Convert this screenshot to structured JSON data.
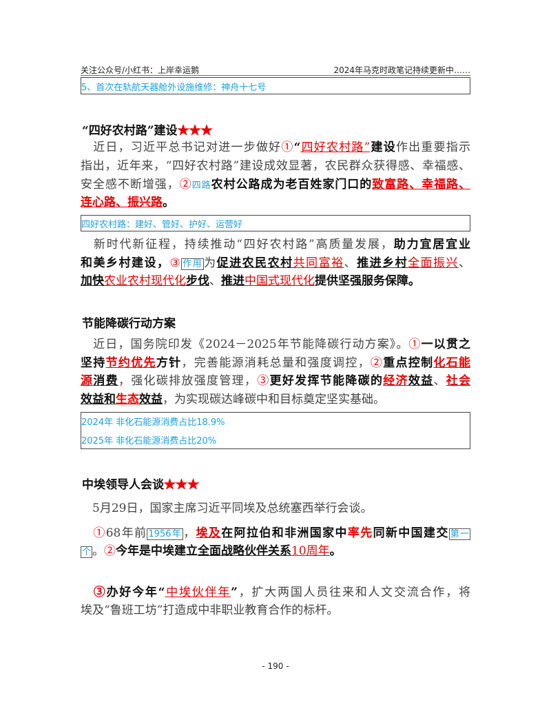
{
  "header": {
    "left": "关注公众号/小红书：上岸幸运鹅",
    "right": "2024年马克时政笔记持续更新中……"
  },
  "notes": {
    "n1": "5、首次在轨航天器舱外设施维修：神舟十七号",
    "n2": "四好农村路：建好、管好、护好、运营好",
    "n3a": "2024年 非化石能源消费占比18.9%",
    "n3b": "2025年 非化石能源消费占比20%"
  },
  "titles": {
    "t1": "“四好农村路”建设",
    "t2": "节能降碳行动方案",
    "t3": "中埃领导人会谈",
    "stars": "★★★"
  },
  "colors": {
    "red": "#ee0000",
    "note_blue": "#1ba1e2",
    "text": "#444444"
  },
  "lines": [
    {
      "full": true,
      "segs": [
        [
          "　近日，习近平总书记对进一步做好",
          "n"
        ],
        [
          "①",
          "r"
        ],
        [
          "“",
          "b"
        ],
        [
          "四好农村路”",
          "ru"
        ],
        [
          "建设",
          "b"
        ],
        [
          "作出重要指示",
          "n"
        ]
      ]
    },
    {
      "full": true,
      "segs": [
        [
          "指出，近年来，“四好农村路”建设成效显著，农民群众获得感、幸福感、",
          "n"
        ]
      ]
    },
    {
      "full": true,
      "segs": [
        [
          "安全感不断增强，",
          "n"
        ],
        [
          "②",
          "r"
        ],
        [
          "四路",
          "c"
        ],
        [
          "农村公路成为老百姓家门口的",
          "b"
        ],
        [
          "致富路、幸福路、",
          "rbu"
        ]
      ]
    },
    {
      "full": false,
      "segs": [
        [
          "连心路、振兴路",
          "rbu"
        ],
        [
          "。",
          "b"
        ]
      ]
    },
    {
      "full": true,
      "segs": [
        [
          "　新时代新征程，持续推动“四好农村路”高质量发展，",
          "n"
        ],
        [
          "助力宜居宜业",
          "b"
        ]
      ]
    },
    {
      "full": true,
      "segs": [
        [
          "和美乡村建设，",
          "b"
        ],
        [
          "③",
          "r"
        ],
        [
          "作用",
          "cb"
        ],
        [
          "为",
          "n"
        ],
        [
          "促进农民农村",
          "bu"
        ],
        [
          "共同富裕",
          "ru"
        ],
        [
          "、",
          "n"
        ],
        [
          "推进乡村",
          "bu"
        ],
        [
          "全面振兴",
          "ru"
        ],
        [
          "、",
          "n"
        ]
      ]
    },
    {
      "full": false,
      "segs": [
        [
          "加快",
          "bu"
        ],
        [
          "农业农村现代化",
          "ru"
        ],
        [
          "步伐",
          "bu"
        ],
        [
          "、",
          "n"
        ],
        [
          "推进",
          "bu"
        ],
        [
          "中国式现代化",
          "ru"
        ],
        [
          "提供坚强服务保障。",
          "b"
        ]
      ]
    },
    {
      "full": true,
      "segs": [
        [
          "　近日，国务院印发《2024－2025年节能降碳行动方案》。",
          "n"
        ],
        [
          "①",
          "r"
        ],
        [
          "一以贯之",
          "b"
        ]
      ]
    },
    {
      "full": true,
      "segs": [
        [
          "坚持",
          "b"
        ],
        [
          "节约优先",
          "rbu"
        ],
        [
          "方针",
          "b"
        ],
        [
          "，完善能源消耗总量和强度调控，",
          "n"
        ],
        [
          "②",
          "r"
        ],
        [
          "重点控制",
          "b"
        ],
        [
          "化石能",
          "rbu"
        ]
      ]
    },
    {
      "full": true,
      "segs": [
        [
          "源",
          "rbu"
        ],
        [
          "消费",
          "bu"
        ],
        [
          "，强化碳排放强度管理，",
          "n"
        ],
        [
          "③",
          "r"
        ],
        [
          "更好发挥节能降碳的",
          "b"
        ],
        [
          "经济",
          "rbu"
        ],
        [
          "效益",
          "bu"
        ],
        [
          "、",
          "n"
        ],
        [
          "社会",
          "rbu"
        ]
      ]
    },
    {
      "full": false,
      "segs": [
        [
          "效益和",
          "bu"
        ],
        [
          "生态",
          "rbu"
        ],
        [
          "效益",
          "bu"
        ],
        [
          "，为实现碳达峰碳中和目标奠定坚实基础。",
          "n"
        ]
      ]
    },
    {
      "full": false,
      "segs": [
        [
          "　5月29日，国家主席习近平同埃及总统塞西举行会谈。",
          "n"
        ]
      ]
    },
    {
      "full": true,
      "segs": [
        [
          "　",
          "n"
        ],
        [
          "①",
          "r"
        ],
        [
          "68年前",
          "n"
        ],
        [
          "1956年",
          "cb"
        ],
        [
          "，",
          "n"
        ],
        [
          "埃及",
          "rbu"
        ],
        [
          "在阿拉伯和非洲国家中",
          "b"
        ],
        [
          "率先",
          "rb"
        ],
        [
          "同新中国建交",
          "b"
        ],
        [
          "第一",
          "cb"
        ]
      ]
    },
    {
      "full": false,
      "segs": [
        [
          "个",
          "cb"
        ],
        [
          "。",
          "n"
        ],
        [
          "②",
          "r"
        ],
        [
          "今年是中埃建立",
          "b"
        ],
        [
          "全面战略伙伴关系",
          "bu"
        ],
        [
          "10周年",
          "ru"
        ],
        [
          "。",
          "b"
        ]
      ]
    },
    {
      "full": true,
      "segs": [
        [
          "　",
          "n"
        ],
        [
          "③",
          "rb"
        ],
        [
          "办好今年“",
          "b"
        ],
        [
          "中埃伙伴年",
          "ru"
        ],
        [
          "”",
          "b"
        ],
        [
          "，扩大两国人员往来和人文交流合作，将",
          "n"
        ]
      ]
    },
    {
      "full": false,
      "segs": [
        [
          "埃及“鲁班工坊”打造成中非职业教育合作的标杆。",
          "n"
        ]
      ]
    }
  ],
  "page_number": "- 190 -"
}
